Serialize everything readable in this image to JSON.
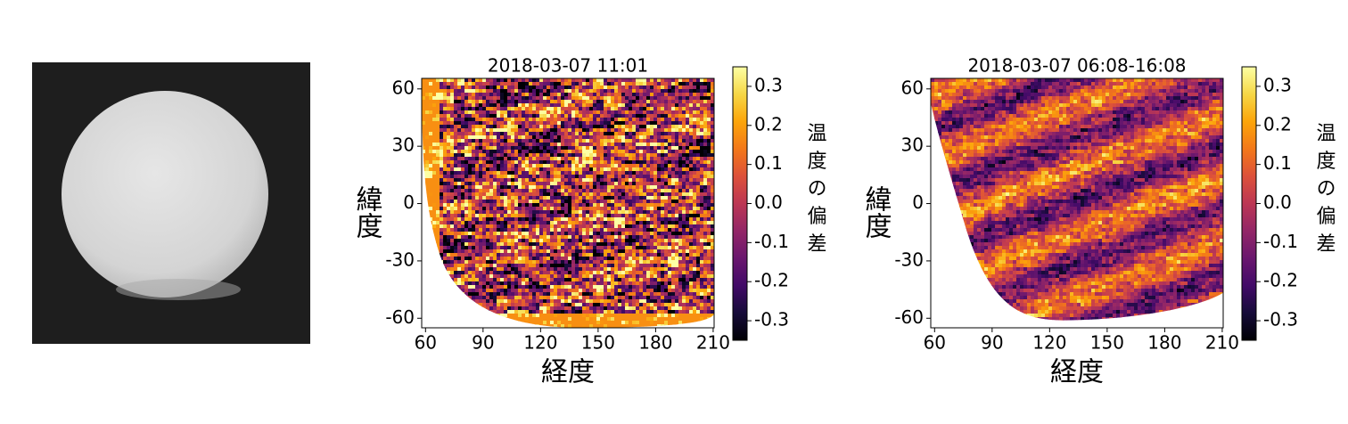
{
  "chart_data": [
    {
      "type": "heatmap",
      "title": "2018-03-07 11:01",
      "xlabel": "経度",
      "ylabel": "緯度",
      "xlim": [
        58,
        210.5
      ],
      "ylim": [
        -65,
        65.5
      ],
      "xticks": [
        60,
        90,
        120,
        150,
        180,
        210
      ],
      "yticks": [
        -60,
        -30,
        0,
        30,
        60
      ],
      "colormap": "inferno",
      "colorbar": {
        "label": "温度の偏差",
        "lim": [
          -0.35,
          0.35
        ],
        "ticks": [
          -0.3,
          -0.2,
          -0.1,
          {
            "value": 0,
            "label": "0.0"
          },
          0.1,
          0.2,
          0.3
        ]
      }
    },
    {
      "type": "heatmap",
      "title": "2018-03-07 06:08-16:08",
      "xlabel": "経度",
      "ylabel": "緯度",
      "xlim": [
        58,
        210.5
      ],
      "ylim": [
        -65,
        65.5
      ],
      "xticks": [
        60,
        90,
        120,
        150,
        180,
        210
      ],
      "yticks": [
        -60,
        -30,
        0,
        30,
        60
      ],
      "colormap": "inferno",
      "colorbar": {
        "label": "温度の偏差",
        "lim": [
          -0.35,
          0.35
        ],
        "ticks": [
          -0.3,
          -0.2,
          -0.1,
          {
            "value": 0,
            "label": "0.0"
          },
          0.1,
          0.2,
          0.3
        ]
      }
    }
  ]
}
